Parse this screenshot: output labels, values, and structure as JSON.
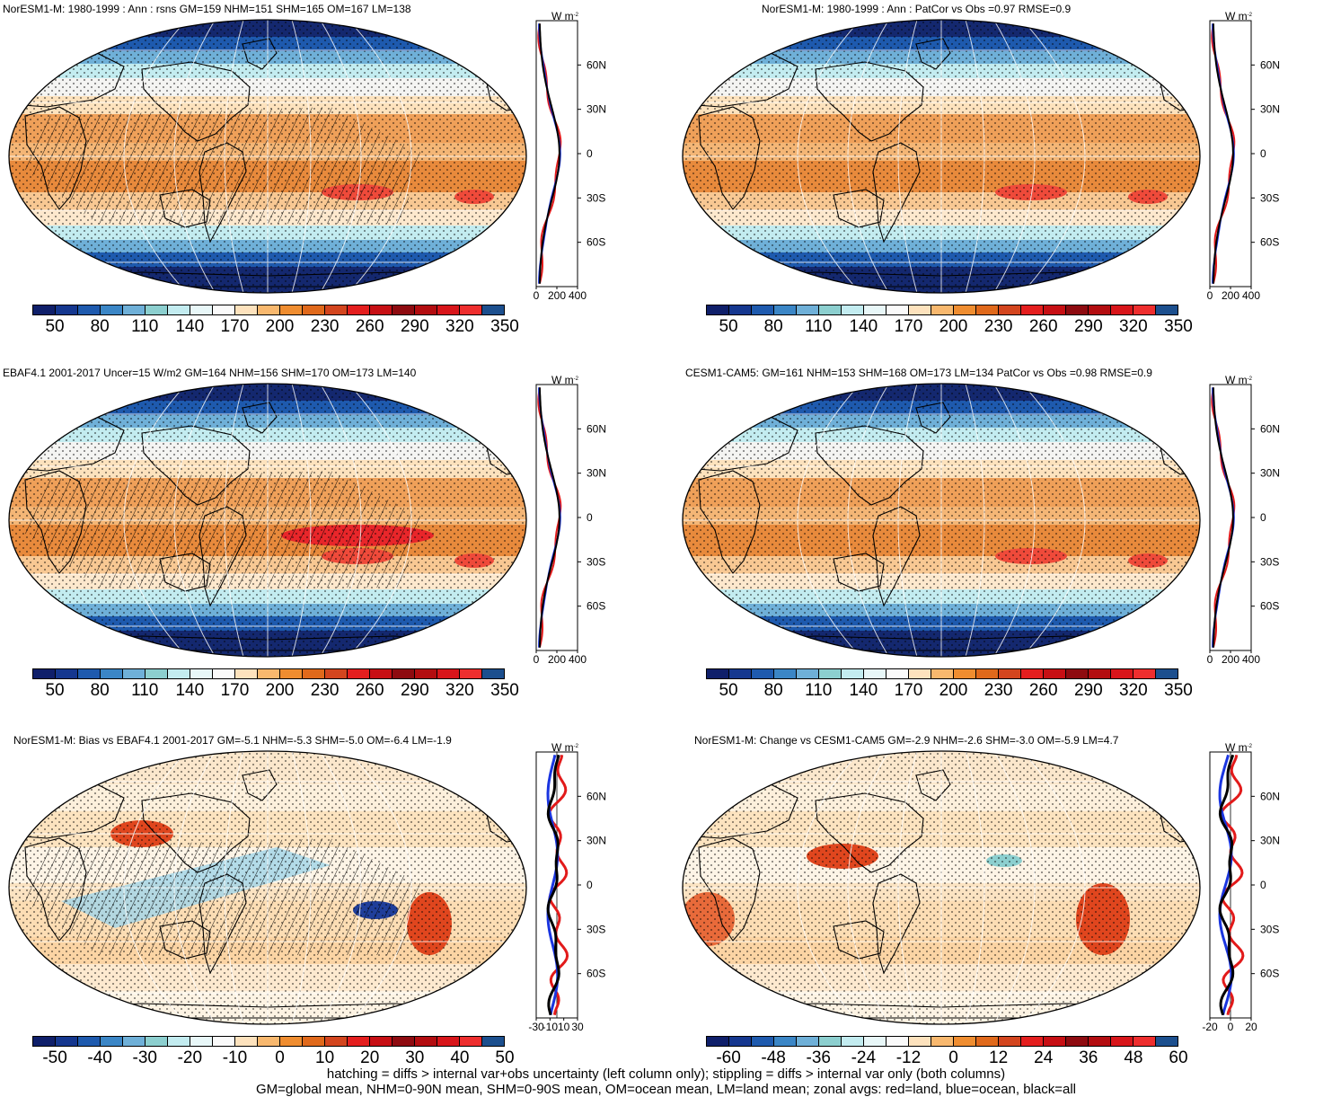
{
  "panels": [
    {
      "id": "p1",
      "title": "NorESM1-M: 1980-1999 : Ann : rsns GM=159 NHM=151 SHM=165 OM=167 LM=138",
      "kind": "clim",
      "hatch": true,
      "scale": "abs",
      "ztype": "abs"
    },
    {
      "id": "p2",
      "title": "NorESM1-M: 1980-1999 : Ann : PatCor vs Obs =0.97 RMSE=0.9",
      "kind": "clim",
      "hatch": false,
      "scale": "abs",
      "ztype": "abs"
    },
    {
      "id": "p3",
      "title": "EBAF4.1 2001-2017 Uncer=15 W/m2 GM=164 NHM=156 SHM=170 OM=173 LM=140",
      "kind": "obs",
      "hatch": true,
      "scale": "abs",
      "ztype": "abs"
    },
    {
      "id": "p4",
      "title": "CESM1-CAM5: GM=161 NHM=153 SHM=168 OM=173 LM=134 PatCor vs Obs =0.98 RMSE=0.9",
      "kind": "clim",
      "hatch": false,
      "scale": "abs",
      "ztype": "abs"
    },
    {
      "id": "p5",
      "title": "NorESM1-M: Bias vs EBAF4.1 2001-2017 GM=-5.1 NHM=-5.3 SHM=-5.0 OM=-6.4 LM=-1.9",
      "kind": "bias",
      "hatch": true,
      "scale": "bias",
      "ztype": "bias"
    },
    {
      "id": "p6",
      "title": "NorESM1-M: Change vs CESM1-CAM5 GM=-2.9 NHM=-2.6 SHM=-3.0 OM=-5.9 LM=4.7",
      "kind": "change",
      "hatch": false,
      "scale": "change",
      "ztype": "change"
    }
  ],
  "scales": {
    "abs": {
      "colors": [
        "#0f1f6a",
        "#15378f",
        "#1e5aae",
        "#3b86c6",
        "#6fb0d8",
        "#8ccfcf",
        "#c3ecf0",
        "#e8f7f8",
        "#fafafa",
        "#fde2bd",
        "#f8b86e",
        "#ef8d30",
        "#e0691b",
        "#d3451e",
        "#e41e1e",
        "#c70f14",
        "#8e0b10",
        "#b30d10",
        "#d8151a",
        "#ee2e2e",
        "#1c4f8e"
      ],
      "labels": [
        "50",
        "80",
        "110",
        "140",
        "170",
        "200",
        "230",
        "260",
        "290",
        "320",
        "350"
      ]
    },
    "bias": {
      "colors": [
        "#0f1f6a",
        "#15378f",
        "#1e5aae",
        "#3b86c6",
        "#6fb0d8",
        "#8ccfcf",
        "#c3ecf0",
        "#e8f7f8",
        "#fafafa",
        "#fde2bd",
        "#f8b86e",
        "#ef8d30",
        "#e0691b",
        "#d3451e",
        "#e41e1e",
        "#c70f14",
        "#8e0b10",
        "#b30d10",
        "#d8151a",
        "#ee2e2e",
        "#1c4f8e"
      ],
      "labels": [
        "-50",
        "-40",
        "-30",
        "-20",
        "-10",
        "0",
        "10",
        "20",
        "30",
        "40",
        "50"
      ]
    },
    "change": {
      "colors": [
        "#0f1f6a",
        "#15378f",
        "#1e5aae",
        "#3b86c6",
        "#6fb0d8",
        "#8ccfcf",
        "#c3ecf0",
        "#e8f7f8",
        "#fafafa",
        "#fde2bd",
        "#f8b86e",
        "#ef8d30",
        "#e0691b",
        "#d3451e",
        "#e41e1e",
        "#c70f14",
        "#8e0b10",
        "#b30d10",
        "#d8151a",
        "#ee2e2e",
        "#1c4f8e"
      ],
      "labels": [
        "-60",
        "-48",
        "-36",
        "-24",
        "-12",
        "0",
        "12",
        "24",
        "36",
        "48",
        "60"
      ]
    }
  },
  "zonal": {
    "unit": "W m",
    "unit_sup": "-2",
    "lat_labels": [
      "60N",
      "30N",
      "0",
      "30S",
      "60S"
    ],
    "abs_ticks": [
      "0",
      "200",
      "400"
    ],
    "bias_ticks": [
      "-30",
      "-10",
      "10",
      "30"
    ],
    "change_ticks": [
      "-20",
      "0",
      "20"
    ],
    "line_colors": {
      "land": "#e21a1a",
      "ocean": "#1a35e0",
      "all": "#000000"
    }
  },
  "footer": {
    "line1": "hatching = diffs > internal var+obs uncertainty (left column only); stippling = diffs > internal var only (both columns)",
    "line2": "GM=global mean, NHM=0-90N mean, SHM=0-90S mean, OM=ocean mean, LM=land mean; zonal avgs: red=land, blue=ocean, black=all"
  }
}
